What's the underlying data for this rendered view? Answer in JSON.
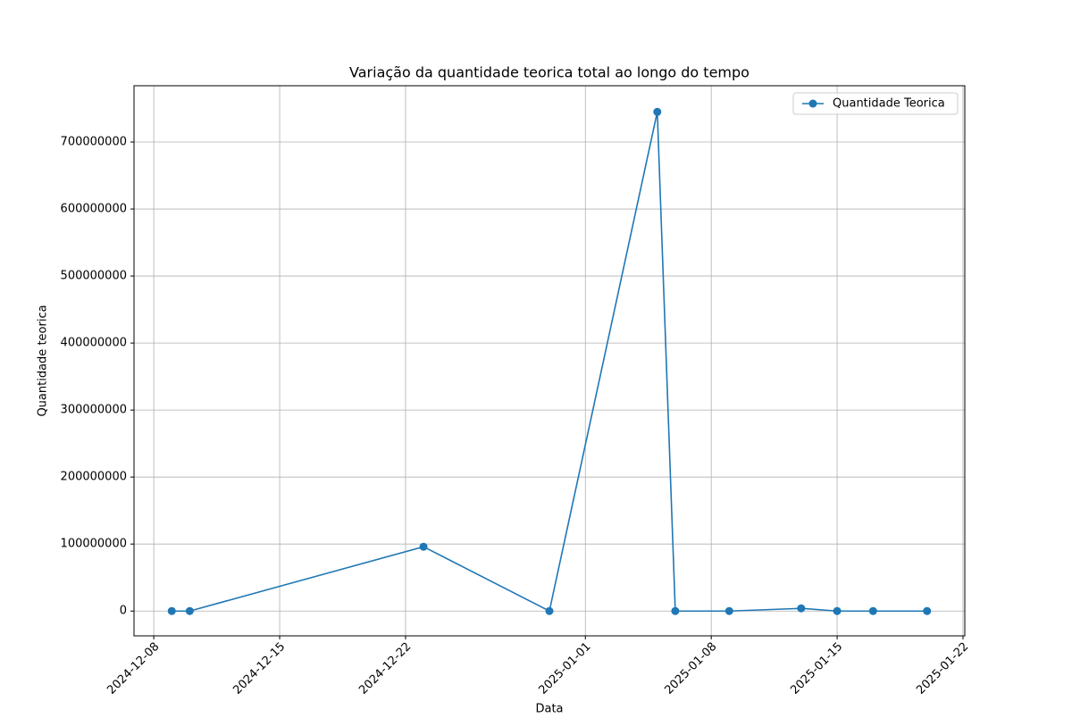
{
  "chart_data": {
    "type": "line",
    "title": "Variação da quantidade teorica total ao longo do tempo",
    "xlabel": "Data",
    "ylabel": "Quantidade teorica",
    "x": [
      "2024-12-09",
      "2024-12-10",
      "2024-12-23",
      "2024-12-30",
      "2025-01-05",
      "2025-01-06",
      "2025-01-09",
      "2025-01-13",
      "2025-01-15",
      "2025-01-17",
      "2025-01-20"
    ],
    "series": [
      {
        "name": "Quantidade Teorica",
        "color": "#1f77b4",
        "values": [
          0,
          0,
          96000000,
          0,
          745000000,
          0,
          0,
          4000000,
          0,
          0,
          0
        ]
      }
    ],
    "xlim": [
      "2024-12-06T21:36:00Z",
      "2025-01-22T02:24:00Z"
    ],
    "xticks": [
      "2024-12-08",
      "2024-12-15",
      "2024-12-22",
      "2025-01-01",
      "2025-01-08",
      "2025-01-15",
      "2025-01-22"
    ],
    "ylim": [
      -37000000,
      784000000
    ],
    "yticks": [
      0,
      100000000,
      200000000,
      300000000,
      400000000,
      500000000,
      600000000,
      700000000
    ],
    "grid": true,
    "legend": "upper right"
  }
}
